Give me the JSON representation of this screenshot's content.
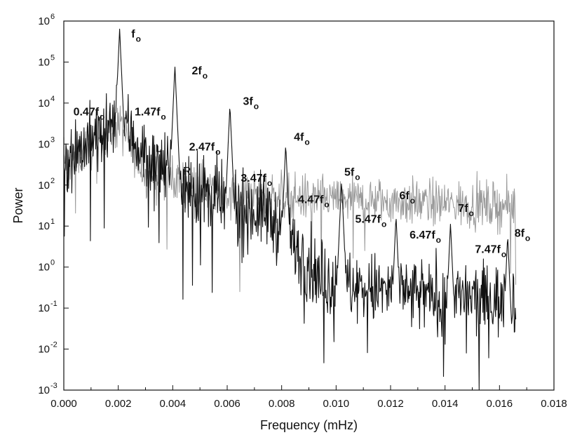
{
  "chart_data": {
    "type": "line",
    "xlabel": "Frequency (mHz)",
    "ylabel": "Power",
    "xlim": [
      0.0,
      0.018
    ],
    "ylim": [
      0.001,
      1000000
    ],
    "yscale": "log",
    "grid": false,
    "x_ticks": [
      "0.000",
      "0.002",
      "0.004",
      "0.006",
      "0.008",
      "0.010",
      "0.012",
      "0.014",
      "0.016",
      "0.018"
    ],
    "y_ticks": [
      {
        "base": "10",
        "exp": "-3"
      },
      {
        "base": "10",
        "exp": "-2"
      },
      {
        "base": "10",
        "exp": "-1"
      },
      {
        "base": "10",
        "exp": "0"
      },
      {
        "base": "10",
        "exp": "1"
      },
      {
        "base": "10",
        "exp": "2"
      },
      {
        "base": "10",
        "exp": "3"
      },
      {
        "base": "10",
        "exp": "4"
      },
      {
        "base": "10",
        "exp": "5"
      },
      {
        "base": "10",
        "exp": "6"
      }
    ],
    "series": [
      {
        "color": "#111111",
        "peaks": [
          {
            "x": 0.00205,
            "y": 650000
          },
          {
            "x": 0.00408,
            "y": 80000
          },
          {
            "x": 0.0061,
            "y": 9000
          },
          {
            "x": 0.00815,
            "y": 1000
          },
          {
            "x": 0.0102,
            "y": 130
          },
          {
            "x": 0.0122,
            "y": 18
          },
          {
            "x": 0.0142,
            "y": 12
          },
          {
            "x": 0.0163,
            "y": 6
          }
        ],
        "noise_floor": [
          {
            "x": 0.0,
            "y": 500
          },
          {
            "x": 0.0017,
            "y": 2000
          },
          {
            "x": 0.002,
            "y": 5000
          },
          {
            "x": 0.003,
            "y": 500
          },
          {
            "x": 0.004,
            "y": 150
          },
          {
            "x": 0.006,
            "y": 30
          },
          {
            "x": 0.0075,
            "y": 20
          },
          {
            "x": 0.0085,
            "y": 3
          },
          {
            "x": 0.0095,
            "y": 0.5
          },
          {
            "x": 0.011,
            "y": 0.3
          },
          {
            "x": 0.013,
            "y": 0.2
          },
          {
            "x": 0.0165,
            "y": 0.15
          }
        ]
      },
      {
        "color": "#9a9a9a",
        "peaks": [],
        "noise_floor": [
          {
            "x": 0.0,
            "y": 300
          },
          {
            "x": 0.002,
            "y": 3000
          },
          {
            "x": 0.003,
            "y": 200
          },
          {
            "x": 0.006,
            "y": 60
          },
          {
            "x": 0.01,
            "y": 45
          },
          {
            "x": 0.0165,
            "y": 30
          }
        ]
      }
    ],
    "annotations": [
      {
        "main": "f",
        "sub": "o",
        "x": 0.00248,
        "y": 400000
      },
      {
        "main": "2f",
        "sub": "o",
        "x": 0.0047,
        "y": 50000
      },
      {
        "main": "3f",
        "sub": "o",
        "x": 0.00658,
        "y": 9000
      },
      {
        "main": "4f",
        "sub": "o",
        "x": 0.00845,
        "y": 1200
      },
      {
        "main": "5f",
        "sub": "o",
        "x": 0.0103,
        "y": 170
      },
      {
        "main": "6f",
        "sub": "o",
        "x": 0.01232,
        "y": 45
      },
      {
        "main": "7f",
        "sub": "o",
        "x": 0.01448,
        "y": 22
      },
      {
        "main": "8f",
        "sub": "o",
        "x": 0.01655,
        "y": 5.5
      },
      {
        "main": "0.47f",
        "sub": "o",
        "x": 0.00035,
        "y": 5000
      },
      {
        "main": "1.47f",
        "sub": "o",
        "x": 0.0026,
        "y": 5000
      },
      {
        "main": "2.47f",
        "sub": "o",
        "x": 0.0046,
        "y": 700
      },
      {
        "main": "3.47f",
        "sub": "o",
        "x": 0.0065,
        "y": 120
      },
      {
        "main": "4.47f",
        "sub": "o",
        "x": 0.0086,
        "y": 36
      },
      {
        "main": "5.47f",
        "sub": "o",
        "x": 0.0107,
        "y": 12
      },
      {
        "main": "6.47f",
        "sub": "o",
        "x": 0.0127,
        "y": 5
      },
      {
        "main": "7.47f",
        "sub": "o",
        "x": 0.0151,
        "y": 2.2
      }
    ],
    "markers": [
      {
        "label": "L",
        "x": 0.00348,
        "y": 650
      },
      {
        "label": "R",
        "x": 0.00452,
        "y": 180
      }
    ]
  }
}
